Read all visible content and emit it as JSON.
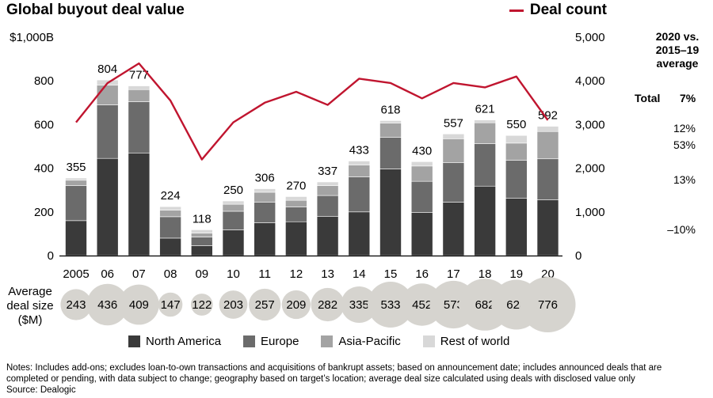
{
  "header": {
    "title": "Global buyout deal value",
    "deal_count_legend": "Deal count"
  },
  "comparison": {
    "heading_line1": "2020 vs.",
    "heading_line2": "2015–19",
    "heading_line3": "average",
    "total_label": "Total",
    "total_value": "7%",
    "values": [
      "12%",
      "53%",
      "13%",
      "–10%"
    ]
  },
  "avg_deal_size": {
    "label_line1": "Average",
    "label_line2": "deal size",
    "label_line3": "($M)"
  },
  "legend": {
    "north_america": "North America",
    "europe": "Europe",
    "asia_pacific": "Asia-Pacific",
    "rest_of_world": "Rest of world"
  },
  "colors": {
    "north_america": "#3a3a3a",
    "europe": "#6b6b6b",
    "asia_pacific": "#a3a3a3",
    "rest_of_world": "#d8d8d8",
    "deal_count": "#c0152f",
    "bubble": "#d6d4cf"
  },
  "notes": {
    "line1": "Notes: Includes add-ons; excludes loan-to-own transactions and acquisitions of bankrupt assets; based on announcement date; includes announced deals that are",
    "line2": "completed or pending, with data subject to change; geography based on target’s location; average deal size calculated using deals with disclosed value only",
    "line3": "Source: Dealogic"
  },
  "chart_data": {
    "type": "bar",
    "stacked": true,
    "categories": [
      "2005",
      "06",
      "07",
      "08",
      "09",
      "10",
      "11",
      "12",
      "13",
      "14",
      "15",
      "16",
      "17",
      "18",
      "19",
      "20"
    ],
    "totals": [
      355,
      804,
      777,
      224,
      118,
      250,
      306,
      270,
      337,
      433,
      618,
      430,
      557,
      621,
      550,
      592
    ],
    "series": [
      {
        "name": "North America",
        "values": [
          160,
          445,
          470,
          80,
          45,
          118,
          150,
          155,
          180,
          200,
          397,
          197,
          245,
          318,
          262,
          255
        ]
      },
      {
        "name": "Europe",
        "values": [
          160,
          245,
          235,
          98,
          40,
          85,
          95,
          68,
          95,
          160,
          145,
          143,
          180,
          195,
          175,
          188
        ]
      },
      {
        "name": "Asia-Pacific",
        "values": [
          25,
          90,
          55,
          30,
          18,
          32,
          45,
          30,
          45,
          55,
          65,
          70,
          110,
          95,
          78,
          125
        ]
      },
      {
        "name": "Rest of world",
        "values": [
          10,
          24,
          17,
          16,
          15,
          15,
          16,
          17,
          17,
          18,
          11,
          20,
          22,
          13,
          35,
          24
        ]
      }
    ],
    "deal_count": {
      "name": "Deal count",
      "values": [
        3050,
        3950,
        4400,
        3550,
        2200,
        3050,
        3500,
        3750,
        3450,
        4050,
        3950,
        3600,
        3950,
        3850,
        4100,
        3100
      ]
    },
    "avg_deal_size": [
      243,
      436,
      409,
      147,
      122,
      203,
      257,
      209,
      282,
      335,
      533,
      452,
      573,
      682,
      628,
      776
    ],
    "left_axis": {
      "ylim": [
        0,
        1000
      ],
      "ticks": [
        "0",
        "200",
        "400",
        "600",
        "800",
        "$1,000B"
      ]
    },
    "right_axis": {
      "ylim": [
        0,
        5000
      ],
      "ticks": [
        "0",
        "1,000",
        "2,000",
        "3,000",
        "4,000",
        "5,000"
      ]
    }
  }
}
